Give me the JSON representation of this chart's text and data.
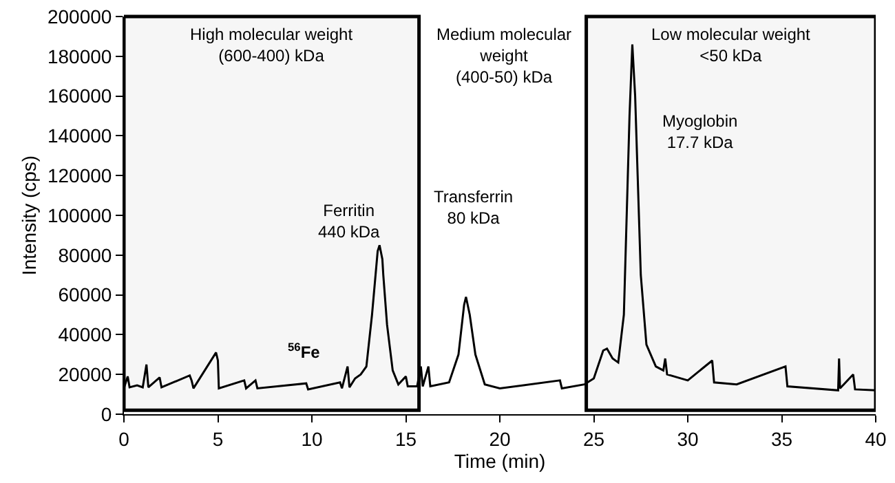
{
  "chart_data": {
    "type": "line",
    "xlabel": "Time (min)",
    "ylabel": "Intensity (cps)",
    "xlim": [
      0,
      40
    ],
    "xticks": [
      0,
      5,
      10,
      15,
      20,
      25,
      30,
      35,
      40
    ],
    "ylim": [
      0,
      200000
    ],
    "yticks": [
      0,
      20000,
      40000,
      60000,
      80000,
      100000,
      120000,
      140000,
      160000,
      180000,
      200000
    ],
    "grid": false,
    "marker": "none",
    "line_style": "solid",
    "series": [
      {
        "color": "#000000",
        "x": [
          0,
          0.2,
          0.3,
          0.7,
          1.0,
          1.2,
          1.3,
          1.9,
          2.0,
          3.5,
          3.6,
          3.7,
          4.9,
          5.0,
          5.05,
          6.4,
          6.5,
          7,
          7.1,
          9.7,
          9.8,
          11.5,
          11.6,
          11.9,
          12.0,
          12.3,
          12.6,
          12.9,
          13.2,
          13.5,
          13.6,
          13.75,
          13.8,
          14.0,
          14.3,
          14.6,
          15.0,
          15.1,
          15.6,
          15.8,
          15.9,
          16.2,
          16.3,
          17.3,
          17.8,
          18.1,
          18.2,
          18.4,
          18.7,
          19.2,
          20,
          23.2,
          23.3,
          24.5,
          25,
          25.5,
          25.7,
          26.0,
          26.3,
          26.6,
          26.9,
          27.05,
          27.2,
          27.5,
          27.8,
          28.3,
          28.7,
          28.8,
          28.9,
          30,
          31.3,
          31.4,
          32.6,
          35.2,
          35.3,
          38,
          38.05,
          38.1,
          38.8,
          38.9,
          40
        ],
        "values": [
          13000,
          19000,
          13500,
          14500,
          13500,
          25000,
          13500,
          18500,
          13500,
          19500,
          17000,
          13000,
          31000,
          27000,
          13000,
          17000,
          13000,
          17000,
          13000,
          15500,
          12500,
          16000,
          13000,
          24000,
          13500,
          18000,
          20000,
          24000,
          50000,
          82000,
          85000,
          78000,
          70000,
          45000,
          22000,
          15000,
          19000,
          14000,
          14000,
          24000,
          14000,
          24000,
          14000,
          16000,
          30000,
          55000,
          59000,
          50000,
          30000,
          15000,
          13000,
          17000,
          13000,
          15000,
          18000,
          32000,
          33000,
          28000,
          26000,
          50000,
          150000,
          186000,
          160000,
          70000,
          35000,
          24000,
          22000,
          28000,
          20000,
          17000,
          27000,
          16000,
          15000,
          24000,
          14000,
          12000,
          28000,
          13000,
          20000,
          12500,
          12000
        ]
      }
    ],
    "bands": [
      {
        "axis": "x",
        "from": 0,
        "to": 15.7,
        "label": "High molecular weight\n(600-400) kDa",
        "color": "#000000"
      },
      {
        "axis": "x",
        "from": 24.6,
        "to": 40,
        "label": "Low molecular weight\n<50 kDa",
        "color": "#000000"
      }
    ],
    "annotations": [
      "Medium molecular\nweight\n(400-50) kDa",
      "Ferritin\n440 kDa",
      "Transferrin\n80 kDa",
      "Myoglobin\n17.7 kDa",
      "$^{56}$Fe"
    ]
  }
}
